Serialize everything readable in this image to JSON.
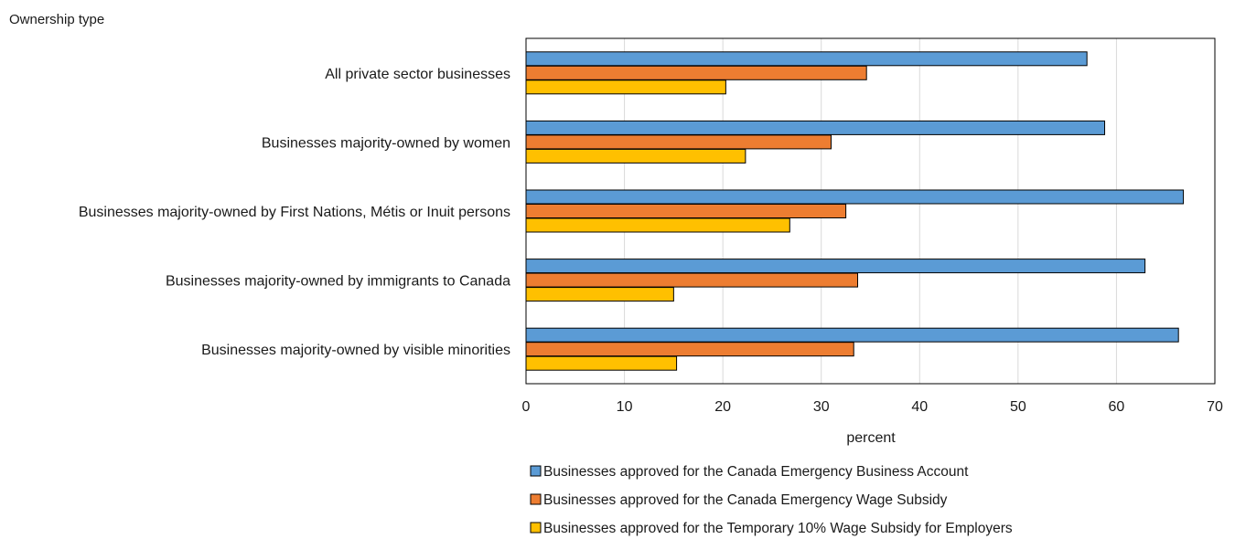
{
  "chart_data": {
    "type": "bar",
    "orientation": "horizontal",
    "y_axis_title": "Ownership type",
    "xlabel": "percent",
    "xlim": [
      0,
      70
    ],
    "x_ticks": [
      0,
      10,
      20,
      30,
      40,
      50,
      60,
      70
    ],
    "grid": "vertical",
    "legend_position": "bottom",
    "categories": [
      "All private sector businesses",
      "Businesses majority-owned by women",
      "Businesses majority-owned by First Nations, Métis or Inuit persons",
      "Businesses majority-owned by immigrants to Canada",
      "Businesses majority-owned by visible minorities"
    ],
    "series": [
      {
        "name": "Businesses approved for the Canada Emergency Business Account",
        "color": "#5b9bd5",
        "values": [
          57.0,
          58.8,
          66.8,
          62.9,
          66.3
        ]
      },
      {
        "name": "Businesses approved for the Canada Emergency Wage Subsidy",
        "color": "#ed7d31",
        "values": [
          34.6,
          31.0,
          32.5,
          33.7,
          33.3
        ]
      },
      {
        "name": "Businesses approved for the Temporary 10% Wage Subsidy for Employers",
        "color": "#ffc000",
        "values": [
          20.3,
          22.3,
          26.8,
          15.0,
          15.3
        ]
      }
    ]
  }
}
